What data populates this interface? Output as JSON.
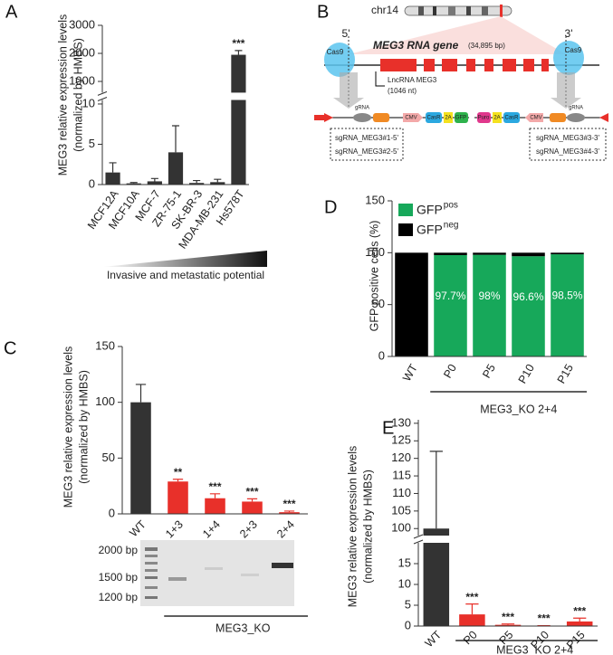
{
  "chart_data": [
    {
      "type": "bar",
      "panel": "A",
      "ylabel": [
        "MEG3 relative expression levels",
        "(normalized by HMBS)"
      ],
      "categories": [
        "MCF12A",
        "MCF10A",
        "MCF-7",
        "ZR-75-1",
        "SK-BR-3",
        "MDA-MB-231",
        "Hs578T"
      ],
      "values": [
        1.5,
        0.15,
        0.4,
        4.0,
        0.2,
        0.3,
        1950
      ],
      "errors": [
        1.2,
        0.1,
        0.35,
        3.3,
        0.3,
        0.35,
        150
      ],
      "annotations": [
        null,
        null,
        null,
        null,
        null,
        null,
        "***"
      ],
      "color": "#333333",
      "axis_segments": [
        {
          "ylim": [
            0,
            10.5
          ],
          "yticks": [
            0,
            5,
            10
          ]
        },
        {
          "ylim": [
            600,
            3000
          ],
          "yticks": [
            1000,
            2000,
            3000
          ]
        }
      ],
      "gradient_label": "Invasive and metastatic potential"
    },
    {
      "type": "bar",
      "panel": "C",
      "ylabel": [
        "MEG3 relative expression levels",
        "(normalized by HMBS)"
      ],
      "categories": [
        "WT",
        "1+3",
        "1+4",
        "2+3",
        "2+4"
      ],
      "values": [
        100,
        29,
        14,
        11,
        1.5
      ],
      "errors": [
        16,
        2,
        4,
        2.5,
        1
      ],
      "annotations": [
        null,
        "**",
        "***",
        "***",
        "***"
      ],
      "colors": [
        "#333333",
        "#e8302a",
        "#e8302a",
        "#e8302a",
        "#e8302a"
      ],
      "ylim": [
        0,
        150
      ],
      "yticks": [
        0,
        50,
        100,
        150
      ],
      "group_label": "MEG3_KO",
      "gel_labels": [
        "2000 bp",
        "1500 bp",
        "1200 bp"
      ]
    },
    {
      "type": "stacked_bar",
      "panel": "D",
      "ylabel": [
        "GFP positive cells (%)"
      ],
      "categories": [
        "WT",
        "P0",
        "P5",
        "P10",
        "P15"
      ],
      "series": [
        {
          "name": "GFP",
          "name_superscript": "pos",
          "color": "#17a85a",
          "values": [
            0,
            97.7,
            98,
            96.6,
            98.5
          ],
          "value_labels": [
            null,
            "97.7%",
            "98%",
            "96.6%",
            "98.5%"
          ]
        },
        {
          "name": "GFP",
          "name_superscript": "neg",
          "color": "#000000",
          "values": [
            100,
            2.3,
            2,
            3.4,
            1.5
          ]
        }
      ],
      "ylim": [
        0,
        150
      ],
      "yticks": [
        0,
        50,
        100,
        150
      ],
      "group_label": "MEG3_KO 2+4"
    },
    {
      "type": "bar",
      "panel": "E",
      "ylabel": [
        "MEG3 relative expression levels",
        "(normalized by HMBS)"
      ],
      "categories": [
        "WT",
        "P0",
        "P5",
        "P10",
        "P15"
      ],
      "values": [
        100,
        2.8,
        0.3,
        0.05,
        1.1
      ],
      "errors": [
        22,
        2.5,
        0.2,
        0.05,
        0.8
      ],
      "annotations": [
        null,
        "***",
        "***",
        "***",
        "***"
      ],
      "colors": [
        "#333333",
        "#e8302a",
        "#e8302a",
        "#e8302a",
        "#e8302a"
      ],
      "axis_segments": [
        {
          "ylim": [
            0,
            20
          ],
          "yticks": [
            0,
            5,
            10,
            15
          ]
        },
        {
          "ylim": [
            98,
            131
          ],
          "yticks": [
            100,
            105,
            110,
            115,
            120,
            125,
            130
          ]
        }
      ],
      "group_label": "MEG3_KO 2+4"
    }
  ],
  "diagram": {
    "panel": "B",
    "chromosome": "chr14",
    "gene_label": "MEG3 RNA gene",
    "gene_size": "(34,895 bp)",
    "end5": "5'",
    "end3": "3'",
    "cas9": [
      "Cas9",
      "Cas9"
    ],
    "lncrna": "LncRNA MEG3",
    "lncrna_size": "(1046 nt)",
    "grna": [
      "gRNA",
      "gRNA"
    ],
    "left_cassette": [
      "CMV",
      "CasR",
      "2A",
      "GFP"
    ],
    "right_cassette": [
      "Puro",
      "2A",
      "CasR",
      "CMV"
    ],
    "left_sgrnas": [
      "sgRNA_MEG3#1-5'",
      "sgRNA_MEG3#2-5'"
    ],
    "right_sgrnas": [
      "sgRNA_MEG3#3-3'",
      "sgRNA_MEG3#4-3'"
    ]
  }
}
